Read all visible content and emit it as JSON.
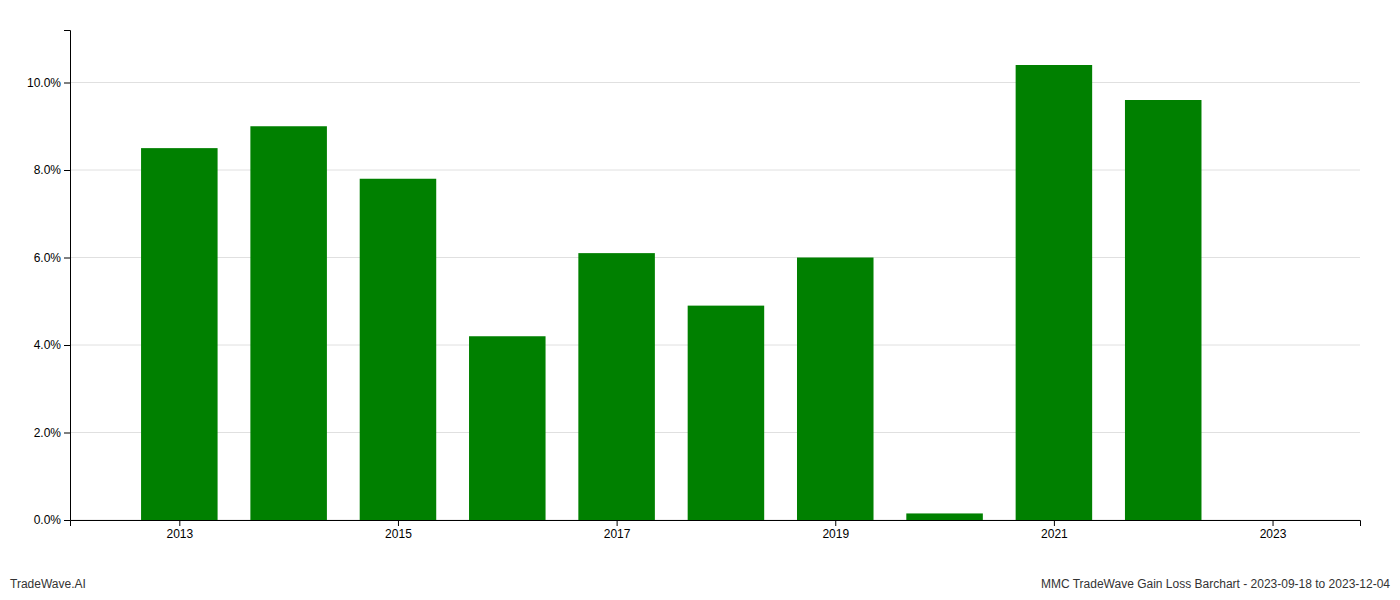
{
  "chart_data": {
    "type": "bar",
    "x": [
      2013,
      2014,
      2015,
      2016,
      2017,
      2018,
      2019,
      2020,
      2021,
      2022
    ],
    "values": [
      0.085,
      0.09,
      0.078,
      0.042,
      0.061,
      0.049,
      0.06,
      0.0015,
      0.104,
      0.096
    ],
    "color": "#008000",
    "xlim": [
      2012.0,
      2023.8
    ],
    "xticks": [
      2013,
      2015,
      2017,
      2019,
      2021,
      2023
    ],
    "ylim": [
      0,
      0.112
    ],
    "yticks": [
      {
        "value": 0.0,
        "label": "0.0%"
      },
      {
        "value": 0.02,
        "label": "2.0%"
      },
      {
        "value": 0.04,
        "label": "4.0%"
      },
      {
        "value": 0.06,
        "label": "6.0%"
      },
      {
        "value": 0.08,
        "label": "8.0%"
      },
      {
        "value": 0.1,
        "label": "10.0%"
      }
    ],
    "grid": true,
    "annotations": [
      "TradeWave.AI",
      "MMC TradeWave Gain Loss Barchart - 2023-09-18 to 2023-12-04"
    ]
  }
}
